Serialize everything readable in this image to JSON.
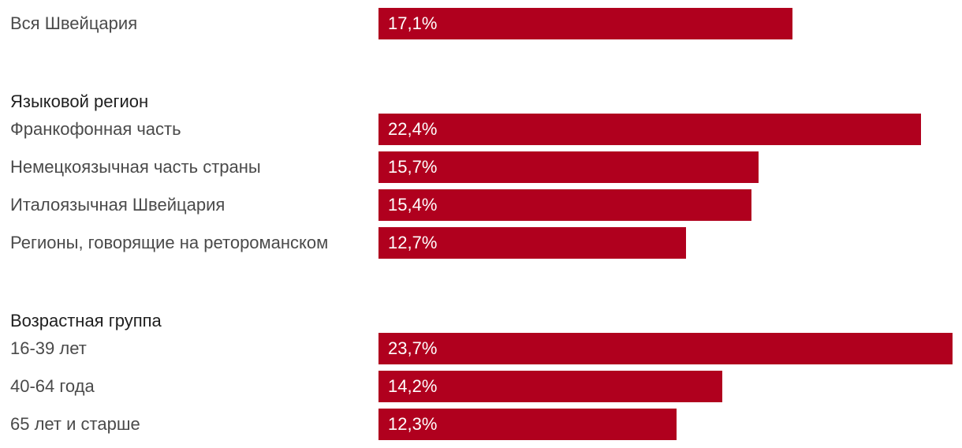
{
  "chart_data": {
    "type": "bar",
    "orientation": "horizontal",
    "bar_color": "#b0001e",
    "groups": [
      {
        "title": "",
        "rows": [
          {
            "label": "Вся Швейцария",
            "value": 17.1,
            "value_label": "17,1%"
          }
        ]
      },
      {
        "title": "Языковой регион",
        "rows": [
          {
            "label": "Франкофонная часть",
            "value": 22.4,
            "value_label": "22,4%"
          },
          {
            "label": "Немецкоязычная часть страны",
            "value": 15.7,
            "value_label": "15,7%"
          },
          {
            "label": "Италоязычная Швейцария",
            "value": 15.4,
            "value_label": "15,4%"
          },
          {
            "label": "Регионы, говорящие на ретороманском",
            "value": 12.7,
            "value_label": "12,7%"
          }
        ]
      },
      {
        "title": "Возрастная группа",
        "rows": [
          {
            "label": "16-39 лет",
            "value": 23.7,
            "value_label": "23,7%"
          },
          {
            "label": "40-64 года",
            "value": 14.2,
            "value_label": "14,2%"
          },
          {
            "label": "65 лет и старше",
            "value": 12.3,
            "value_label": "12,3%"
          }
        ]
      }
    ],
    "xlim": [
      0,
      23.7
    ]
  }
}
